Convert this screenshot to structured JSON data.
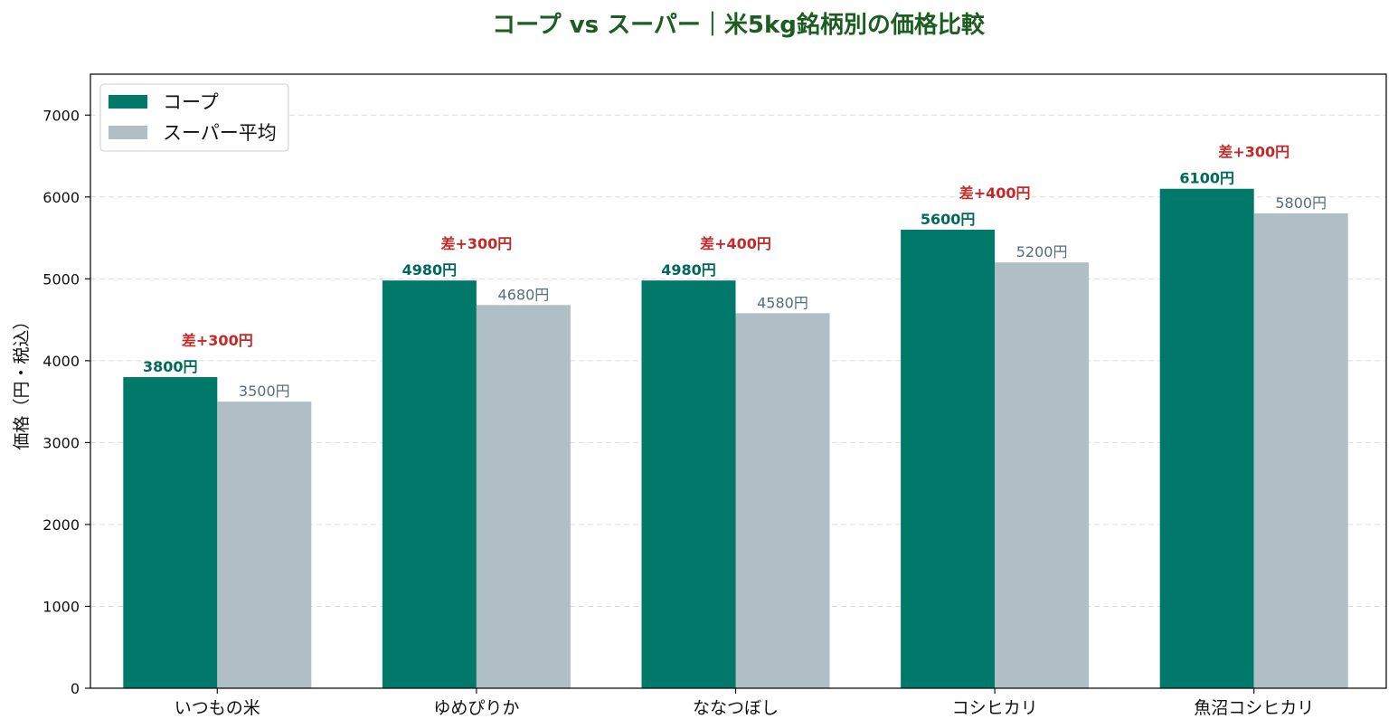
{
  "chart_data": {
    "type": "bar",
    "title": "コープ vs スーパー｜米5kg銘柄別の価格比較",
    "xlabel": "",
    "ylabel": "価格（円・税込）",
    "categories": [
      "いつもの米",
      "ゆめぴりか",
      "ななつぼし",
      "コシヒカリ",
      "魚沼コシヒカリ"
    ],
    "series": [
      {
        "name": "コープ",
        "values": [
          3800,
          4980,
          4980,
          5600,
          6100
        ],
        "labels": [
          "3800円",
          "4980円",
          "4980円",
          "5600円",
          "6100円"
        ],
        "color": "#00796b"
      },
      {
        "name": "スーパー平均",
        "values": [
          3500,
          4680,
          4580,
          5200,
          5800
        ],
        "labels": [
          "3500円",
          "4680円",
          "4580円",
          "5200円",
          "5800円"
        ],
        "color": "#b0bec5"
      }
    ],
    "annotations": [
      "差+300円",
      "差+300円",
      "差+400円",
      "差+400円",
      "差+300円"
    ],
    "ylim": [
      0,
      7500
    ],
    "yticks": [
      "0",
      "1000",
      "2000",
      "3000",
      "4000",
      "5000",
      "6000",
      "7000"
    ],
    "grid": "horizontal dashed",
    "legend_position": "top-left"
  },
  "colors": {
    "title": "#1b5e20",
    "annotation": "#c62828",
    "coop_label": "#00695c",
    "super_label": "#546e7a",
    "grid": "#dddddd"
  }
}
